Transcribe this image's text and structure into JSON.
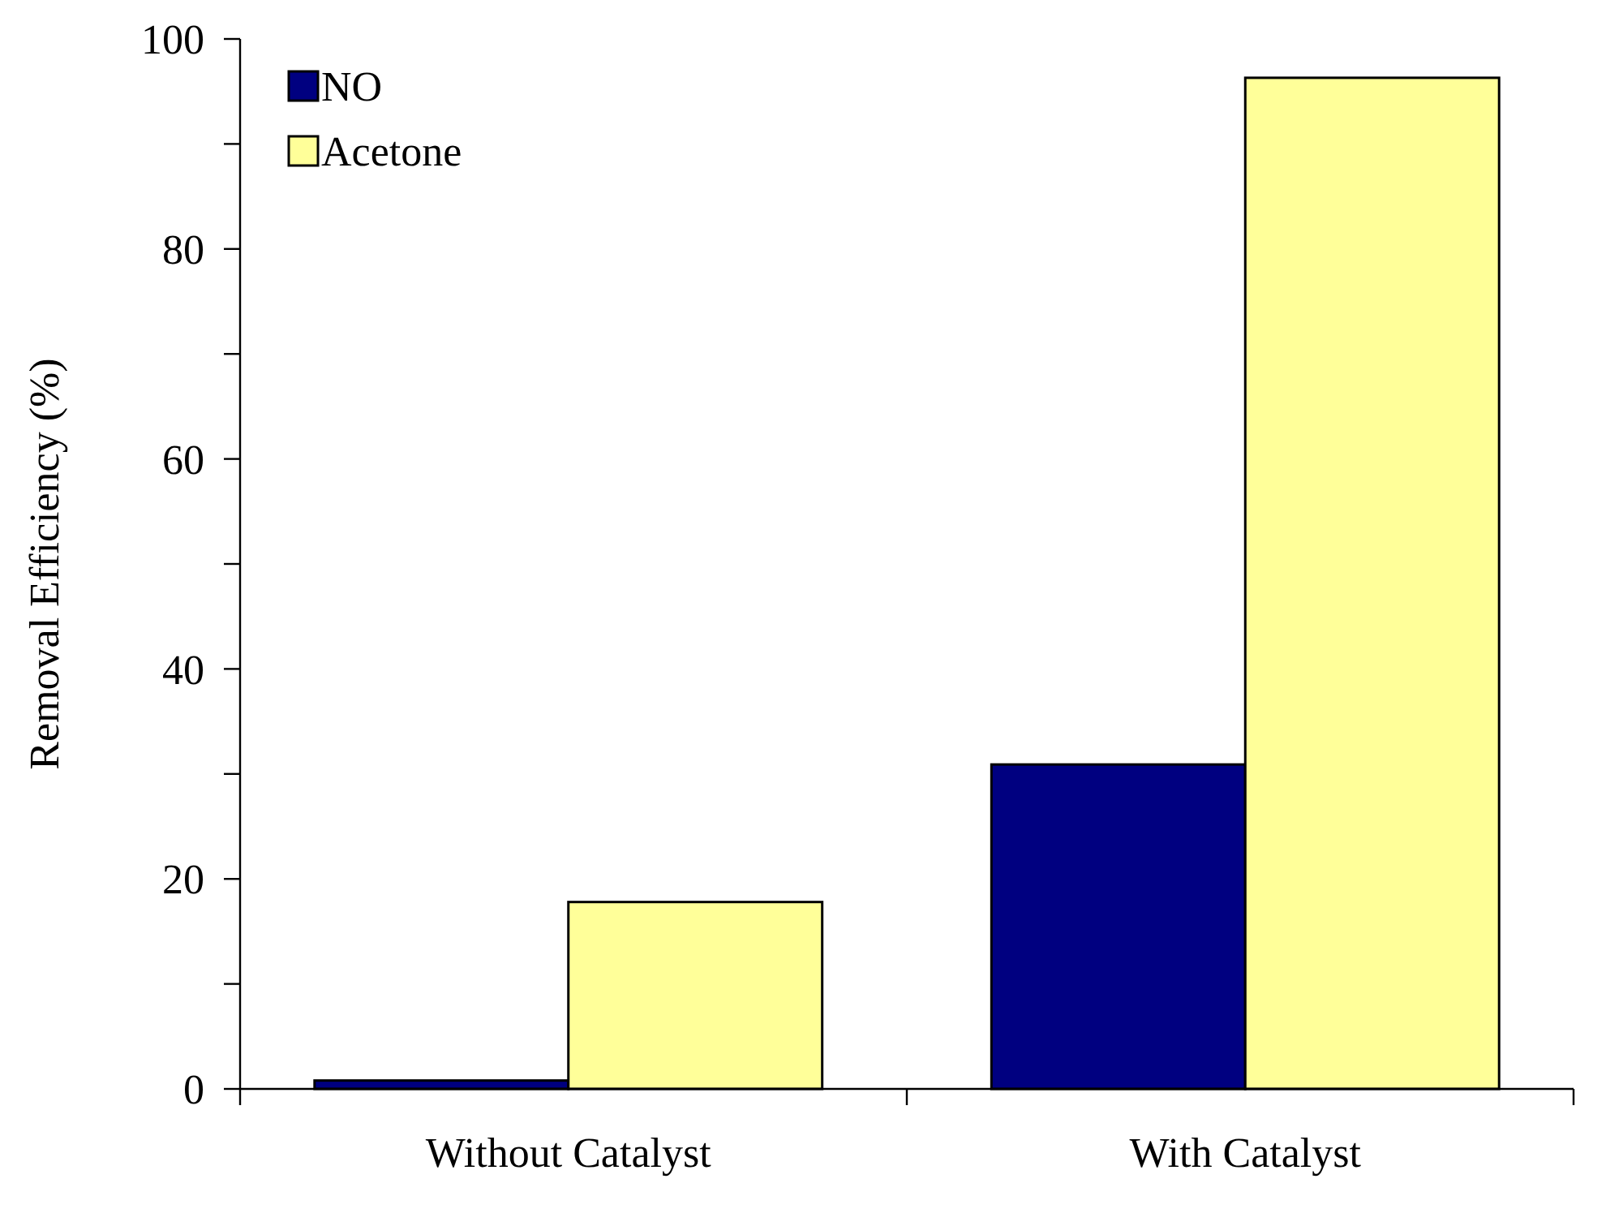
{
  "chart_data": {
    "type": "bar",
    "ylabel": "Removal Efficiency (%)",
    "categories": [
      "Without Catalyst",
      "With Catalyst"
    ],
    "series": [
      {
        "name": "NO",
        "color": "#000080",
        "values": [
          0.8,
          30.9
        ]
      },
      {
        "name": "Acetone",
        "color": "#ffff99",
        "values": [
          17.8,
          96.3
        ]
      }
    ],
    "ylim": [
      0,
      100
    ],
    "yticks": [
      0,
      {
        "value": 10,
        "label": null
      },
      20,
      {
        "value": 30,
        "label": null
      },
      40,
      {
        "value": 50,
        "label": null
      },
      60,
      {
        "value": 70,
        "label": null
      },
      80,
      {
        "value": 90,
        "label": null
      },
      100
    ],
    "grid": false,
    "legend": "top left"
  }
}
